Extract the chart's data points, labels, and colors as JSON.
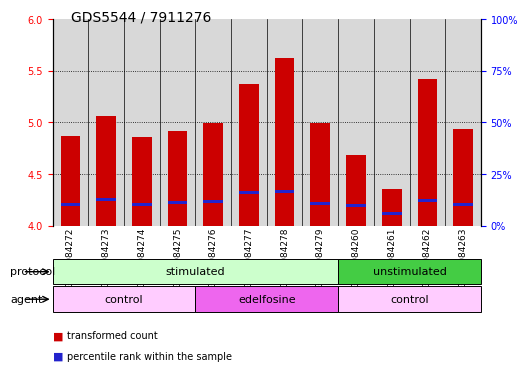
{
  "title": "GDS5544 / 7911276",
  "samples": [
    "GSM1084272",
    "GSM1084273",
    "GSM1084274",
    "GSM1084275",
    "GSM1084276",
    "GSM1084277",
    "GSM1084278",
    "GSM1084279",
    "GSM1084260",
    "GSM1084261",
    "GSM1084262",
    "GSM1084263"
  ],
  "transformed_count": [
    4.87,
    5.06,
    4.86,
    4.92,
    4.99,
    5.37,
    5.62,
    4.99,
    4.68,
    4.35,
    5.42,
    4.94
  ],
  "percentile_base": [
    4.185,
    4.235,
    4.19,
    4.21,
    4.22,
    4.305,
    4.315,
    4.2,
    4.175,
    4.105,
    4.225,
    4.19
  ],
  "percentile_height": [
    0.03,
    0.03,
    0.03,
    0.03,
    0.03,
    0.03,
    0.03,
    0.03,
    0.03,
    0.03,
    0.03,
    0.03
  ],
  "ylim_left": [
    4.0,
    6.0
  ],
  "ylim_right": [
    0,
    100
  ],
  "yticks_left": [
    4.0,
    4.5,
    5.0,
    5.5,
    6.0
  ],
  "yticks_right": [
    0,
    25,
    50,
    75,
    100
  ],
  "ytick_labels_right": [
    "0%",
    "25%",
    "50%",
    "75%",
    "100%"
  ],
  "bar_color": "#cc0000",
  "percentile_color": "#2222cc",
  "bar_width": 0.55,
  "protocol_labels": [
    {
      "text": "stimulated",
      "start": 0,
      "end": 7,
      "color": "#ccffcc"
    },
    {
      "text": "unstimulated",
      "start": 8,
      "end": 11,
      "color": "#44cc44"
    }
  ],
  "agent_labels": [
    {
      "text": "control",
      "start": 0,
      "end": 3,
      "color": "#ffccff"
    },
    {
      "text": "edelfosine",
      "start": 4,
      "end": 7,
      "color": "#ee66ee"
    },
    {
      "text": "control",
      "start": 8,
      "end": 11,
      "color": "#ffccff"
    }
  ],
  "protocol_row_label": "protocol",
  "agent_row_label": "agent",
  "legend_items": [
    {
      "label": "transformed count",
      "color": "#cc0000"
    },
    {
      "label": "percentile rank within the sample",
      "color": "#2222cc"
    }
  ],
  "background_color": "#ffffff",
  "title_fontsize": 10,
  "tick_fontsize": 7,
  "label_fontsize": 8,
  "col_bg_color": "#d8d8d8"
}
